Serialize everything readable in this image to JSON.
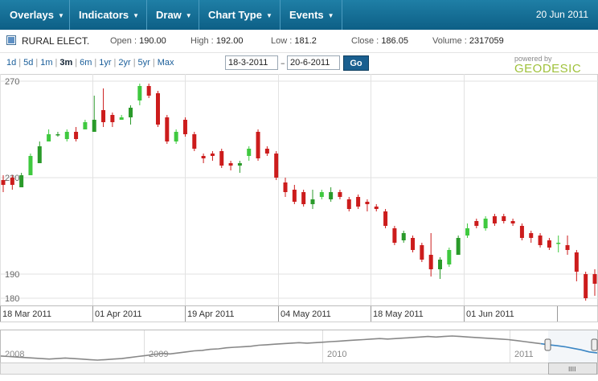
{
  "menu": {
    "items": [
      {
        "label": "Overlays"
      },
      {
        "label": "Indicators"
      },
      {
        "label": "Draw"
      },
      {
        "label": "Chart Type"
      },
      {
        "label": "Events"
      }
    ],
    "date": "20 Jun 2011"
  },
  "quote": {
    "symbol": "RURAL ELECT.",
    "open_label": "Open :",
    "open_value": "190.00",
    "high_label": "High :",
    "high_value": "192.00",
    "low_label": "Low :",
    "low_value": "181.2",
    "close_label": "Close :",
    "close_value": "186.05",
    "volume_label": "Volume :",
    "volume_value": "2317059"
  },
  "range": {
    "links": [
      "1d",
      "5d",
      "1m",
      "3m",
      "6m",
      "1yr",
      "2yr",
      "5yr",
      "Max"
    ],
    "active": "3m",
    "from": "18-3-2011",
    "dash": "–",
    "to": "20-6-2011",
    "go_label": "Go",
    "powered_by": "powered by",
    "brand": "GEODESIC"
  },
  "colors": {
    "up": "#2a9a2a",
    "up_light": "#3fc93f",
    "down": "#cc1c1c",
    "grid": "#e2e2e2",
    "menu_bg": "#146f97",
    "nav_line": "#888888",
    "nav_line_selected": "#3b86c4"
  },
  "chart_data": {
    "type": "candlestick",
    "ylim": [
      177,
      273
    ],
    "y_ticks": [
      "270",
      "230",
      "190",
      "180"
    ],
    "x_ticks": [
      "18 Mar 2011",
      "01 Apr 2011",
      "19 Apr 2011",
      "04 May 2011",
      "18 May 2011",
      "01 Jun 2011"
    ],
    "candles": [
      {
        "o": 229,
        "c": 227,
        "h": 231,
        "l": 224
      },
      {
        "o": 230,
        "c": 227,
        "h": 231,
        "l": 225
      },
      {
        "o": 226,
        "c": 231,
        "h": 232,
        "l": 226
      },
      {
        "o": 231,
        "c": 239,
        "h": 240,
        "l": 231
      },
      {
        "o": 236,
        "c": 243,
        "h": 245,
        "l": 236
      },
      {
        "o": 245,
        "c": 248,
        "h": 250,
        "l": 245
      },
      {
        "o": 248,
        "c": 248,
        "h": 249,
        "l": 247
      },
      {
        "o": 246,
        "c": 249,
        "h": 250,
        "l": 245
      },
      {
        "o": 249,
        "c": 246,
        "h": 251,
        "l": 245
      },
      {
        "o": 250,
        "c": 253,
        "h": 254,
        "l": 250
      },
      {
        "o": 249,
        "c": 254,
        "h": 264,
        "l": 249
      },
      {
        "o": 258,
        "c": 253,
        "h": 267,
        "l": 251
      },
      {
        "o": 256,
        "c": 253,
        "h": 257,
        "l": 251
      },
      {
        "o": 254,
        "c": 255,
        "h": 256,
        "l": 254
      },
      {
        "o": 255,
        "c": 259,
        "h": 260,
        "l": 252
      },
      {
        "o": 262,
        "c": 268,
        "h": 269,
        "l": 260
      },
      {
        "o": 268,
        "c": 264,
        "h": 269,
        "l": 263
      },
      {
        "o": 265,
        "c": 252,
        "h": 266,
        "l": 251
      },
      {
        "o": 255,
        "c": 245,
        "h": 256,
        "l": 244
      },
      {
        "o": 245,
        "c": 249,
        "h": 250,
        "l": 244
      },
      {
        "o": 254,
        "c": 248,
        "h": 255,
        "l": 247
      },
      {
        "o": 248,
        "c": 242,
        "h": 249,
        "l": 241
      },
      {
        "o": 239,
        "c": 238,
        "h": 240,
        "l": 236
      },
      {
        "o": 240,
        "c": 239,
        "h": 241,
        "l": 237
      },
      {
        "o": 241,
        "c": 235,
        "h": 242,
        "l": 234
      },
      {
        "o": 236,
        "c": 235,
        "h": 237,
        "l": 233
      },
      {
        "o": 235,
        "c": 236,
        "h": 237,
        "l": 232
      },
      {
        "o": 239,
        "c": 242,
        "h": 243,
        "l": 237
      },
      {
        "o": 249,
        "c": 238,
        "h": 250,
        "l": 237
      },
      {
        "o": 242,
        "c": 240,
        "h": 243,
        "l": 239
      },
      {
        "o": 240,
        "c": 230,
        "h": 241,
        "l": 229
      },
      {
        "o": 228,
        "c": 224,
        "h": 230,
        "l": 222
      },
      {
        "o": 225,
        "c": 220,
        "h": 227,
        "l": 219
      },
      {
        "o": 224,
        "c": 219,
        "h": 225,
        "l": 218
      },
      {
        "o": 219,
        "c": 221,
        "h": 225,
        "l": 217
      },
      {
        "o": 222,
        "c": 224,
        "h": 225,
        "l": 221
      },
      {
        "o": 221,
        "c": 224,
        "h": 226,
        "l": 220
      },
      {
        "o": 224,
        "c": 222,
        "h": 225,
        "l": 221
      },
      {
        "o": 221,
        "c": 217,
        "h": 222,
        "l": 216
      },
      {
        "o": 222,
        "c": 218,
        "h": 223,
        "l": 217
      },
      {
        "o": 220,
        "c": 219,
        "h": 221,
        "l": 216
      },
      {
        "o": 218,
        "c": 217,
        "h": 219,
        "l": 216
      },
      {
        "o": 216,
        "c": 210,
        "h": 217,
        "l": 209
      },
      {
        "o": 209,
        "c": 203,
        "h": 210,
        "l": 202
      },
      {
        "o": 204,
        "c": 207,
        "h": 208,
        "l": 203
      },
      {
        "o": 205,
        "c": 200,
        "h": 206,
        "l": 199
      },
      {
        "o": 202,
        "c": 196,
        "h": 203,
        "l": 195
      },
      {
        "o": 198,
        "c": 192,
        "h": 207,
        "l": 189
      },
      {
        "o": 192,
        "c": 196,
        "h": 197,
        "l": 188
      },
      {
        "o": 194,
        "c": 200,
        "h": 201,
        "l": 193
      },
      {
        "o": 198,
        "c": 205,
        "h": 206,
        "l": 198
      },
      {
        "o": 206,
        "c": 209,
        "h": 211,
        "l": 205
      },
      {
        "o": 212,
        "c": 210,
        "h": 213,
        "l": 209
      },
      {
        "o": 209,
        "c": 213,
        "h": 214,
        "l": 208
      },
      {
        "o": 214,
        "c": 211,
        "h": 215,
        "l": 210
      },
      {
        "o": 214,
        "c": 212,
        "h": 215,
        "l": 211
      },
      {
        "o": 212,
        "c": 211,
        "h": 213,
        "l": 210
      },
      {
        "o": 210,
        "c": 205,
        "h": 211,
        "l": 204
      },
      {
        "o": 207,
        "c": 205,
        "h": 208,
        "l": 203
      },
      {
        "o": 206,
        "c": 202,
        "h": 207,
        "l": 201
      },
      {
        "o": 204,
        "c": 201,
        "h": 205,
        "l": 200
      },
      {
        "o": 203,
        "c": 203,
        "h": 206,
        "l": 199
      },
      {
        "o": 202,
        "c": 200,
        "h": 206,
        "l": 198
      },
      {
        "o": 199,
        "c": 191,
        "h": 200,
        "l": 187
      },
      {
        "o": 190,
        "c": 180,
        "h": 191,
        "l": 179
      },
      {
        "o": 190,
        "c": 186,
        "h": 192,
        "l": 181
      }
    ]
  },
  "navigator": {
    "years": [
      "2008",
      "2009",
      "2010",
      "2011"
    ],
    "series": [
      210,
      209,
      208,
      207,
      206,
      205,
      204,
      205,
      206,
      205,
      204,
      203,
      202,
      203,
      204,
      205,
      207,
      209,
      211,
      213,
      215,
      214,
      216,
      218,
      220,
      221,
      223,
      224,
      226,
      227,
      228,
      229,
      231,
      232,
      233,
      234,
      235,
      236,
      235,
      236,
      237,
      238,
      239,
      240,
      241,
      242,
      243,
      244,
      243,
      244,
      245,
      246,
      247,
      248,
      247,
      248,
      249,
      248,
      247,
      246,
      245,
      244,
      243,
      242,
      240,
      238,
      236,
      234,
      232,
      230,
      228,
      225,
      222,
      218,
      216
    ],
    "selected_from_index": 67,
    "grip_label": "IIII"
  }
}
